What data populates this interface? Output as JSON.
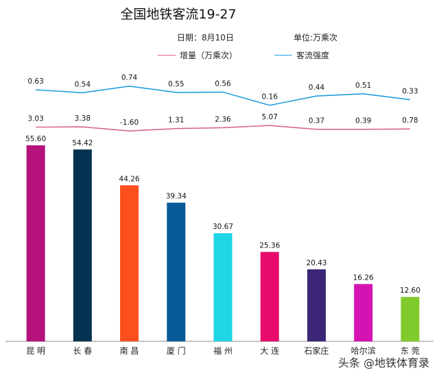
{
  "chart_data": {
    "type": "bar",
    "title": "全国地铁客流19-27",
    "date_label": "日期：",
    "date_value": "8月10日",
    "unit_label": "单位:万乘次",
    "categories": [
      "昆 明",
      "长 春",
      "南 昌",
      "厦 门",
      "福 州",
      "大 连",
      "石家庄",
      "哈尔滨",
      "东 莞"
    ],
    "values": [
      55.6,
      54.42,
      44.26,
      39.34,
      30.67,
      25.36,
      20.43,
      16.26,
      12.6
    ],
    "value_labels": [
      "55.60",
      "54.42",
      "44.26",
      "39.34",
      "30.67",
      "25.36",
      "20.43",
      "16.26",
      "12.60"
    ],
    "bar_colors": [
      "#b5127c",
      "#033350",
      "#fc4f1d",
      "#065a96",
      "#1ed6e5",
      "#e80b6c",
      "#3b2678",
      "#d513b3",
      "#7fcb2c"
    ],
    "lines": [
      {
        "name": "增量（万乘次）",
        "color": "#d9668c",
        "values": [
          3.03,
          3.38,
          -1.6,
          1.31,
          2.36,
          5.07,
          0.37,
          0.39,
          0.78
        ],
        "value_labels": [
          "3.03",
          "3.38",
          "-1.60",
          "1.31",
          "2.36",
          "5.07",
          "0.37",
          "0.39",
          "0.78"
        ]
      },
      {
        "name": "客流强度",
        "color": "#1f9fdf",
        "values": [
          0.63,
          0.54,
          0.74,
          0.55,
          0.56,
          0.16,
          0.44,
          0.51,
          0.33
        ],
        "value_labels": [
          "0.63",
          "0.54",
          "0.74",
          "0.55",
          "0.56",
          "0.16",
          "0.44",
          "0.51",
          "0.33"
        ]
      }
    ],
    "ylim": [
      0,
      60
    ],
    "grid": false
  },
  "watermark": "头条 @地铁体育录"
}
